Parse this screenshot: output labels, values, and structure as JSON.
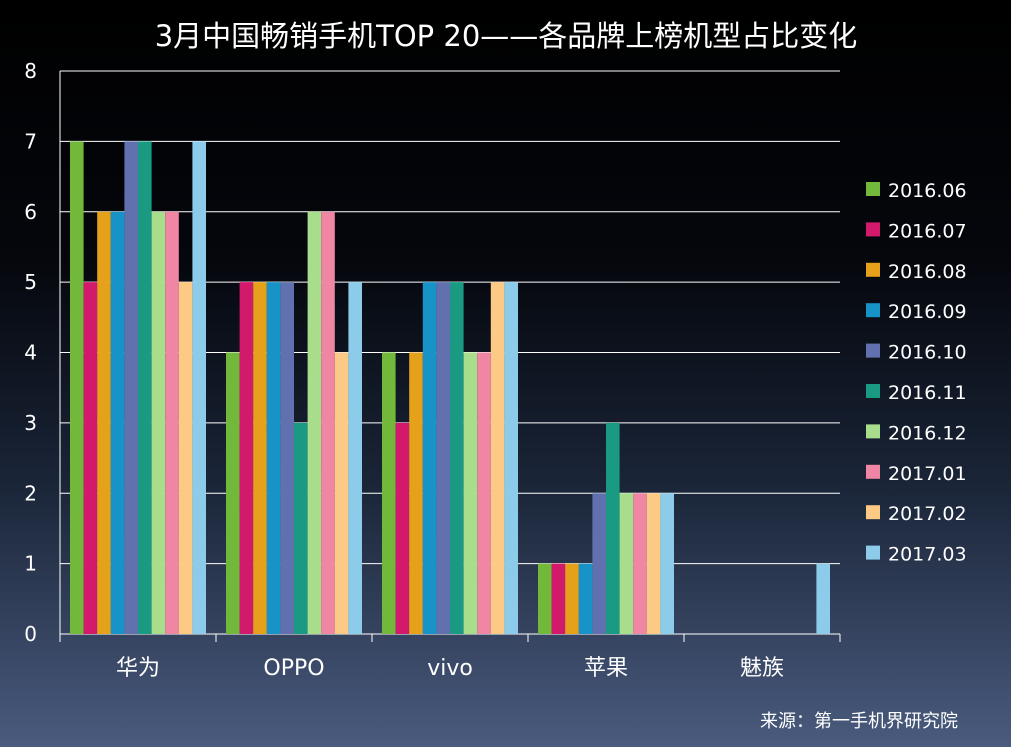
{
  "chart_data": {
    "type": "bar",
    "title": "3月中国畅销手机TOP 20——各品牌上榜机型占比变化",
    "xlabel": "",
    "ylabel": "",
    "ylim": [
      0,
      8
    ],
    "yticks": [
      0,
      1,
      2,
      3,
      4,
      5,
      6,
      7,
      8
    ],
    "grid": true,
    "legend_position": "right",
    "categories": [
      "华为",
      "OPPO",
      "vivo",
      "苹果",
      "魅族"
    ],
    "series": [
      {
        "name": "2016.06",
        "color": "#72b83a",
        "values": [
          7,
          4,
          4,
          1,
          0
        ]
      },
      {
        "name": "2016.07",
        "color": "#d2196b",
        "values": [
          5,
          5,
          3,
          1,
          0
        ]
      },
      {
        "name": "2016.08",
        "color": "#e6a11b",
        "values": [
          6,
          5,
          4,
          1,
          0
        ]
      },
      {
        "name": "2016.09",
        "color": "#1893c8",
        "values": [
          6,
          5,
          5,
          1,
          0
        ]
      },
      {
        "name": "2016.10",
        "color": "#6171b0",
        "values": [
          7,
          5,
          5,
          2,
          0
        ]
      },
      {
        "name": "2016.11",
        "color": "#1a9a83",
        "values": [
          7,
          3,
          5,
          3,
          0
        ]
      },
      {
        "name": "2016.12",
        "color": "#a8dd8c",
        "values": [
          6,
          6,
          4,
          2,
          0
        ]
      },
      {
        "name": "2017.01",
        "color": "#ee86a4",
        "values": [
          6,
          6,
          4,
          2,
          0
        ]
      },
      {
        "name": "2017.02",
        "color": "#fcca85",
        "values": [
          5,
          4,
          5,
          2,
          0
        ]
      },
      {
        "name": "2017.03",
        "color": "#8ccbea",
        "values": [
          7,
          5,
          5,
          2,
          1
        ]
      }
    ],
    "source": "来源：第一手机界研究院"
  }
}
